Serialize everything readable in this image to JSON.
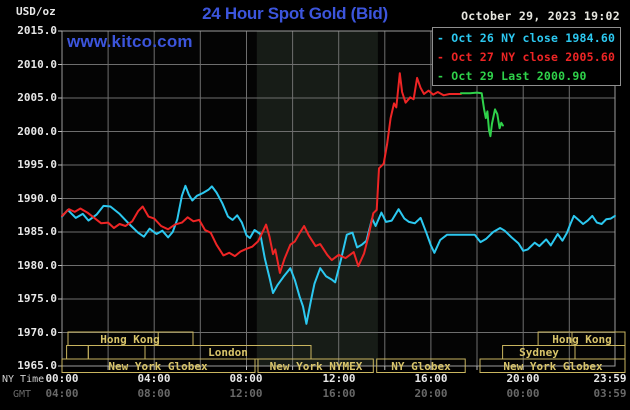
{
  "header": {
    "unit_label": "USD/oz",
    "title": "24 Hour Spot Gold (Bid)",
    "datetime": "October 29, 2023 19:02",
    "watermark": "www.kitco.com"
  },
  "colors": {
    "title_blue": "#3c55dc",
    "cyan": "#2cc8f0",
    "red": "#ee2525",
    "green": "#2fd24a",
    "session_khaki": "#c9b55f",
    "session_text": "#d8c46a",
    "grid": "#6e6e6e",
    "border": "#9c9c9c",
    "tick": "#bbbbbb",
    "axis_text": "#e8e8e8",
    "gmt_text": "#686868",
    "band": "#171c17",
    "plot_bg": "#040404"
  },
  "legend": {
    "entries": [
      {
        "marker": "-",
        "label": "Oct 26 NY close 1984.60",
        "color_key": "cyan"
      },
      {
        "marker": "-",
        "label": "Oct 27 NY close 2005.60",
        "color_key": "red"
      },
      {
        "marker": "-",
        "label": "Oct 29 Last 2000.90",
        "color_key": "green"
      }
    ]
  },
  "y_axis": {
    "labels": [
      "2015.0",
      "2010.0",
      "2005.0",
      "2000.0",
      "1995.0",
      "1990.0",
      "1985.0",
      "1980.0",
      "1975.0",
      "1970.0",
      "1965.0"
    ],
    "values": [
      2015,
      2010,
      2005,
      2000,
      1995,
      1990,
      1985,
      1980,
      1975,
      1970,
      1965
    ]
  },
  "x_axis": {
    "ny_row_label": "NY Time",
    "gmt_row_label": "GMT",
    "tick_hours": [
      0,
      4,
      8,
      12,
      16,
      20,
      23.983
    ],
    "ny_ticks": [
      "00:00",
      "04:00",
      "08:00",
      "12:00",
      "16:00",
      "20:00",
      "23:59"
    ],
    "gmt_ticks": [
      "04:00",
      "08:00",
      "12:00",
      "16:00",
      "20:00",
      "00:00",
      "03:59"
    ]
  },
  "sessions": {
    "rows": [
      {
        "segments": [
          {
            "label": "Hong Kong",
            "start": 0.26,
            "end": 5.68,
            "divider": 4.17
          },
          {
            "label": "Hong Kong",
            "start": 20.65,
            "end": 24.42,
            "divider": 22.12
          }
        ]
      },
      {
        "segments": [
          {
            "label": "",
            "start": 0.2,
            "end": 1.14
          },
          {
            "label": "",
            "start": 1.14,
            "end": 3.6
          },
          {
            "label": "London",
            "start": 3.6,
            "end": 10.8
          },
          {
            "label": "Sydney",
            "start": 19.11,
            "end": 22.25
          },
          {
            "label": "",
            "start": 22.25,
            "end": 24.42
          }
        ]
      },
      {
        "segments": [
          {
            "label": "New York Globex",
            "start": 0.0,
            "end": 8.37
          },
          {
            "label": "New York NYMEX",
            "start": 8.5,
            "end": 13.5
          },
          {
            "label": "NY Globex",
            "start": 13.65,
            "end": 17.49
          },
          {
            "label": "New York Globex",
            "start": 18.13,
            "end": 24.42
          }
        ]
      }
    ]
  },
  "chart_data": {
    "type": "line",
    "title": "24 Hour Spot Gold (Bid)",
    "xlabel": "NY Time (hours)",
    "ylabel": "USD/oz",
    "xlim": [
      0,
      23.983
    ],
    "ylim": [
      1965,
      2015
    ],
    "grid": true,
    "legend_position": "top-right",
    "shaded_region_hours": [
      8.45,
      13.7
    ],
    "series": [
      {
        "name": "Oct 26",
        "color_key": "cyan",
        "ny_close": 1984.6,
        "points": [
          [
            0,
            1987.3
          ],
          [
            0.25,
            1988.3
          ],
          [
            0.6,
            1987.1
          ],
          [
            0.9,
            1987.7
          ],
          [
            1.15,
            1986.7
          ],
          [
            1.5,
            1987.6
          ],
          [
            1.8,
            1988.9
          ],
          [
            2.1,
            1988.8
          ],
          [
            2.5,
            1987.7
          ],
          [
            2.8,
            1986.6
          ],
          [
            3.0,
            1985.9
          ],
          [
            3.3,
            1984.9
          ],
          [
            3.55,
            1984.3
          ],
          [
            3.8,
            1985.5
          ],
          [
            4.1,
            1984.7
          ],
          [
            4.35,
            1985.2
          ],
          [
            4.6,
            1984.2
          ],
          [
            4.8,
            1985.0
          ],
          [
            5.0,
            1986.9
          ],
          [
            5.2,
            1990.4
          ],
          [
            5.35,
            1991.9
          ],
          [
            5.5,
            1990.6
          ],
          [
            5.65,
            1989.7
          ],
          [
            5.85,
            1990.4
          ],
          [
            6.1,
            1990.8
          ],
          [
            6.35,
            1991.3
          ],
          [
            6.5,
            1991.8
          ],
          [
            6.7,
            1990.9
          ],
          [
            6.95,
            1989.3
          ],
          [
            7.2,
            1987.3
          ],
          [
            7.4,
            1986.8
          ],
          [
            7.6,
            1987.5
          ],
          [
            7.8,
            1986.4
          ],
          [
            8.0,
            1984.5
          ],
          [
            8.15,
            1984.1
          ],
          [
            8.35,
            1985.3
          ],
          [
            8.6,
            1984.7
          ],
          [
            8.8,
            1981.0
          ],
          [
            9.0,
            1978.2
          ],
          [
            9.15,
            1975.9
          ],
          [
            9.35,
            1977.1
          ],
          [
            9.6,
            1978.3
          ],
          [
            9.9,
            1979.6
          ],
          [
            10.1,
            1977.8
          ],
          [
            10.3,
            1975.4
          ],
          [
            10.45,
            1973.9
          ],
          [
            10.6,
            1971.3
          ],
          [
            10.8,
            1974.8
          ],
          [
            10.95,
            1977.3
          ],
          [
            11.2,
            1979.6
          ],
          [
            11.45,
            1978.4
          ],
          [
            11.7,
            1977.9
          ],
          [
            11.85,
            1977.5
          ],
          [
            12.1,
            1980.9
          ],
          [
            12.35,
            1984.6
          ],
          [
            12.6,
            1984.9
          ],
          [
            12.8,
            1982.7
          ],
          [
            13.0,
            1983.1
          ],
          [
            13.2,
            1983.7
          ],
          [
            13.45,
            1987.0
          ],
          [
            13.6,
            1985.9
          ],
          [
            13.85,
            1987.9
          ],
          [
            14.05,
            1986.5
          ],
          [
            14.3,
            1986.7
          ],
          [
            14.6,
            1988.4
          ],
          [
            14.85,
            1987.0
          ],
          [
            15.05,
            1986.5
          ],
          [
            15.3,
            1986.3
          ],
          [
            15.55,
            1987.1
          ],
          [
            15.8,
            1984.9
          ],
          [
            16.0,
            1983.0
          ],
          [
            16.15,
            1981.9
          ],
          [
            16.4,
            1983.8
          ],
          [
            16.7,
            1984.6
          ],
          [
            17.0,
            1984.6
          ],
          [
            17.9,
            1984.6
          ],
          [
            18.15,
            1983.5
          ],
          [
            18.4,
            1984.0
          ],
          [
            18.7,
            1985.0
          ],
          [
            19.0,
            1985.6
          ],
          [
            19.2,
            1985.2
          ],
          [
            19.5,
            1984.2
          ],
          [
            19.8,
            1983.3
          ],
          [
            20.0,
            1982.2
          ],
          [
            20.2,
            1982.4
          ],
          [
            20.5,
            1983.4
          ],
          [
            20.7,
            1982.9
          ],
          [
            21.0,
            1983.9
          ],
          [
            21.2,
            1983.0
          ],
          [
            21.5,
            1984.7
          ],
          [
            21.7,
            1983.7
          ],
          [
            21.9,
            1984.9
          ],
          [
            22.05,
            1986.2
          ],
          [
            22.2,
            1987.4
          ],
          [
            22.4,
            1986.8
          ],
          [
            22.6,
            1986.2
          ],
          [
            22.8,
            1986.7
          ],
          [
            23.0,
            1987.4
          ],
          [
            23.2,
            1986.4
          ],
          [
            23.4,
            1986.2
          ],
          [
            23.6,
            1986.9
          ],
          [
            23.8,
            1987.0
          ],
          [
            23.98,
            1987.4
          ]
        ]
      },
      {
        "name": "Oct 27",
        "color_key": "red",
        "ny_close": 2005.6,
        "points": [
          [
            0,
            1987.4
          ],
          [
            0.3,
            1988.4
          ],
          [
            0.55,
            1988.0
          ],
          [
            0.8,
            1988.5
          ],
          [
            1.1,
            1987.9
          ],
          [
            1.4,
            1987.1
          ],
          [
            1.7,
            1986.3
          ],
          [
            2.0,
            1986.4
          ],
          [
            2.25,
            1985.6
          ],
          [
            2.5,
            1986.2
          ],
          [
            2.75,
            1985.9
          ],
          [
            3.05,
            1986.6
          ],
          [
            3.3,
            1988.1
          ],
          [
            3.5,
            1988.8
          ],
          [
            3.75,
            1987.3
          ],
          [
            4.0,
            1987.0
          ],
          [
            4.3,
            1985.9
          ],
          [
            4.6,
            1985.4
          ],
          [
            4.9,
            1986.1
          ],
          [
            5.2,
            1986.4
          ],
          [
            5.45,
            1987.2
          ],
          [
            5.7,
            1986.6
          ],
          [
            5.95,
            1986.8
          ],
          [
            6.2,
            1985.3
          ],
          [
            6.45,
            1984.9
          ],
          [
            6.7,
            1983.1
          ],
          [
            7.0,
            1981.5
          ],
          [
            7.25,
            1981.9
          ],
          [
            7.5,
            1981.4
          ],
          [
            7.75,
            1982.1
          ],
          [
            8.0,
            1982.5
          ],
          [
            8.25,
            1982.8
          ],
          [
            8.5,
            1983.6
          ],
          [
            8.7,
            1985.0
          ],
          [
            8.85,
            1986.1
          ],
          [
            9.0,
            1984.3
          ],
          [
            9.15,
            1981.7
          ],
          [
            9.25,
            1982.4
          ],
          [
            9.45,
            1978.9
          ],
          [
            9.65,
            1981.0
          ],
          [
            9.9,
            1983.1
          ],
          [
            10.1,
            1983.6
          ],
          [
            10.3,
            1984.8
          ],
          [
            10.5,
            1985.9
          ],
          [
            10.7,
            1984.5
          ],
          [
            11.0,
            1982.9
          ],
          [
            11.2,
            1983.2
          ],
          [
            11.5,
            1981.6
          ],
          [
            11.7,
            1980.8
          ],
          [
            12.0,
            1981.6
          ],
          [
            12.3,
            1981.1
          ],
          [
            12.65,
            1982.0
          ],
          [
            12.85,
            1979.9
          ],
          [
            13.1,
            1981.8
          ],
          [
            13.3,
            1984.5
          ],
          [
            13.5,
            1987.8
          ],
          [
            13.65,
            1988.3
          ],
          [
            13.75,
            1994.5
          ],
          [
            13.95,
            1995.2
          ],
          [
            14.1,
            1998.1
          ],
          [
            14.25,
            2002.0
          ],
          [
            14.4,
            2004.2
          ],
          [
            14.5,
            2003.6
          ],
          [
            14.65,
            2008.7
          ],
          [
            14.75,
            2005.9
          ],
          [
            14.9,
            2004.3
          ],
          [
            15.1,
            2005.1
          ],
          [
            15.25,
            2004.8
          ],
          [
            15.4,
            2008.0
          ],
          [
            15.55,
            2006.5
          ],
          [
            15.7,
            2005.6
          ],
          [
            15.9,
            2006.1
          ],
          [
            16.1,
            2005.5
          ],
          [
            16.3,
            2005.9
          ],
          [
            16.55,
            2005.4
          ],
          [
            16.8,
            2005.6
          ],
          [
            17.3,
            2005.6
          ]
        ]
      },
      {
        "name": "Oct 29",
        "color_key": "green",
        "last": 2000.9,
        "points": [
          [
            17.3,
            2005.7
          ],
          [
            17.7,
            2005.7
          ],
          [
            18.0,
            2005.8
          ],
          [
            18.2,
            2005.7
          ],
          [
            18.3,
            2003.4
          ],
          [
            18.38,
            2002.0
          ],
          [
            18.45,
            2003.0
          ],
          [
            18.52,
            2000.2
          ],
          [
            18.58,
            1999.3
          ],
          [
            18.65,
            2001.2
          ],
          [
            18.78,
            2003.3
          ],
          [
            18.88,
            2002.6
          ],
          [
            18.98,
            2000.5
          ],
          [
            19.05,
            2001.3
          ],
          [
            19.12,
            2000.9
          ]
        ]
      }
    ]
  }
}
